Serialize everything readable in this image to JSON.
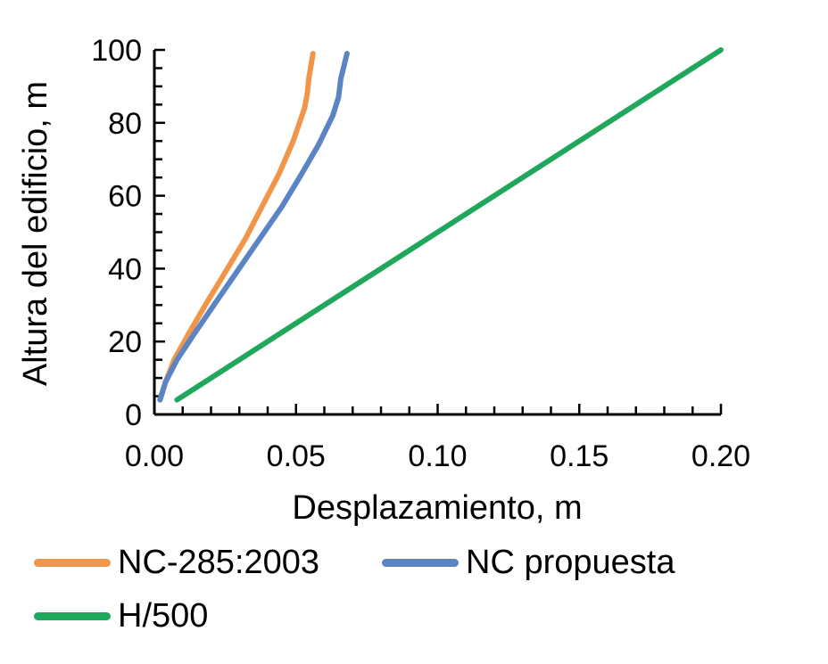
{
  "chart_data": {
    "type": "line",
    "title": "",
    "xlabel": "Desplazamiento, m",
    "ylabel": "Altura del edificio, m",
    "xlim": [
      0.0,
      0.2
    ],
    "ylim": [
      0,
      100
    ],
    "x_ticks": [
      "0.00",
      "0.05",
      "0.10",
      "0.15",
      "0.20"
    ],
    "y_ticks": [
      "0",
      "20",
      "40",
      "60",
      "80",
      "100"
    ],
    "grid": false,
    "legend_position": "bottom",
    "series": [
      {
        "name": "NC-285:2003",
        "color": "#F0954A",
        "points": [
          [
            0.002,
            4
          ],
          [
            0.004,
            9
          ],
          [
            0.007,
            15
          ],
          [
            0.012,
            22
          ],
          [
            0.018,
            30
          ],
          [
            0.025,
            39
          ],
          [
            0.032,
            48
          ],
          [
            0.038,
            57
          ],
          [
            0.044,
            66
          ],
          [
            0.049,
            75
          ],
          [
            0.053,
            84
          ],
          [
            0.054,
            88
          ],
          [
            0.0545,
            92
          ],
          [
            0.056,
            99
          ]
        ]
      },
      {
        "name": "NC propuesta",
        "color": "#5B84C4",
        "points": [
          [
            0.002,
            4
          ],
          [
            0.004,
            9
          ],
          [
            0.008,
            15
          ],
          [
            0.014,
            22
          ],
          [
            0.021,
            30
          ],
          [
            0.029,
            39
          ],
          [
            0.037,
            48
          ],
          [
            0.045,
            57
          ],
          [
            0.052,
            66
          ],
          [
            0.058,
            74
          ],
          [
            0.063,
            82
          ],
          [
            0.065,
            87
          ],
          [
            0.0658,
            92
          ],
          [
            0.068,
            99
          ]
        ]
      },
      {
        "name": "H/500",
        "color": "#1FA85C",
        "points": [
          [
            0.008,
            4
          ],
          [
            0.2,
            100
          ]
        ]
      }
    ]
  }
}
